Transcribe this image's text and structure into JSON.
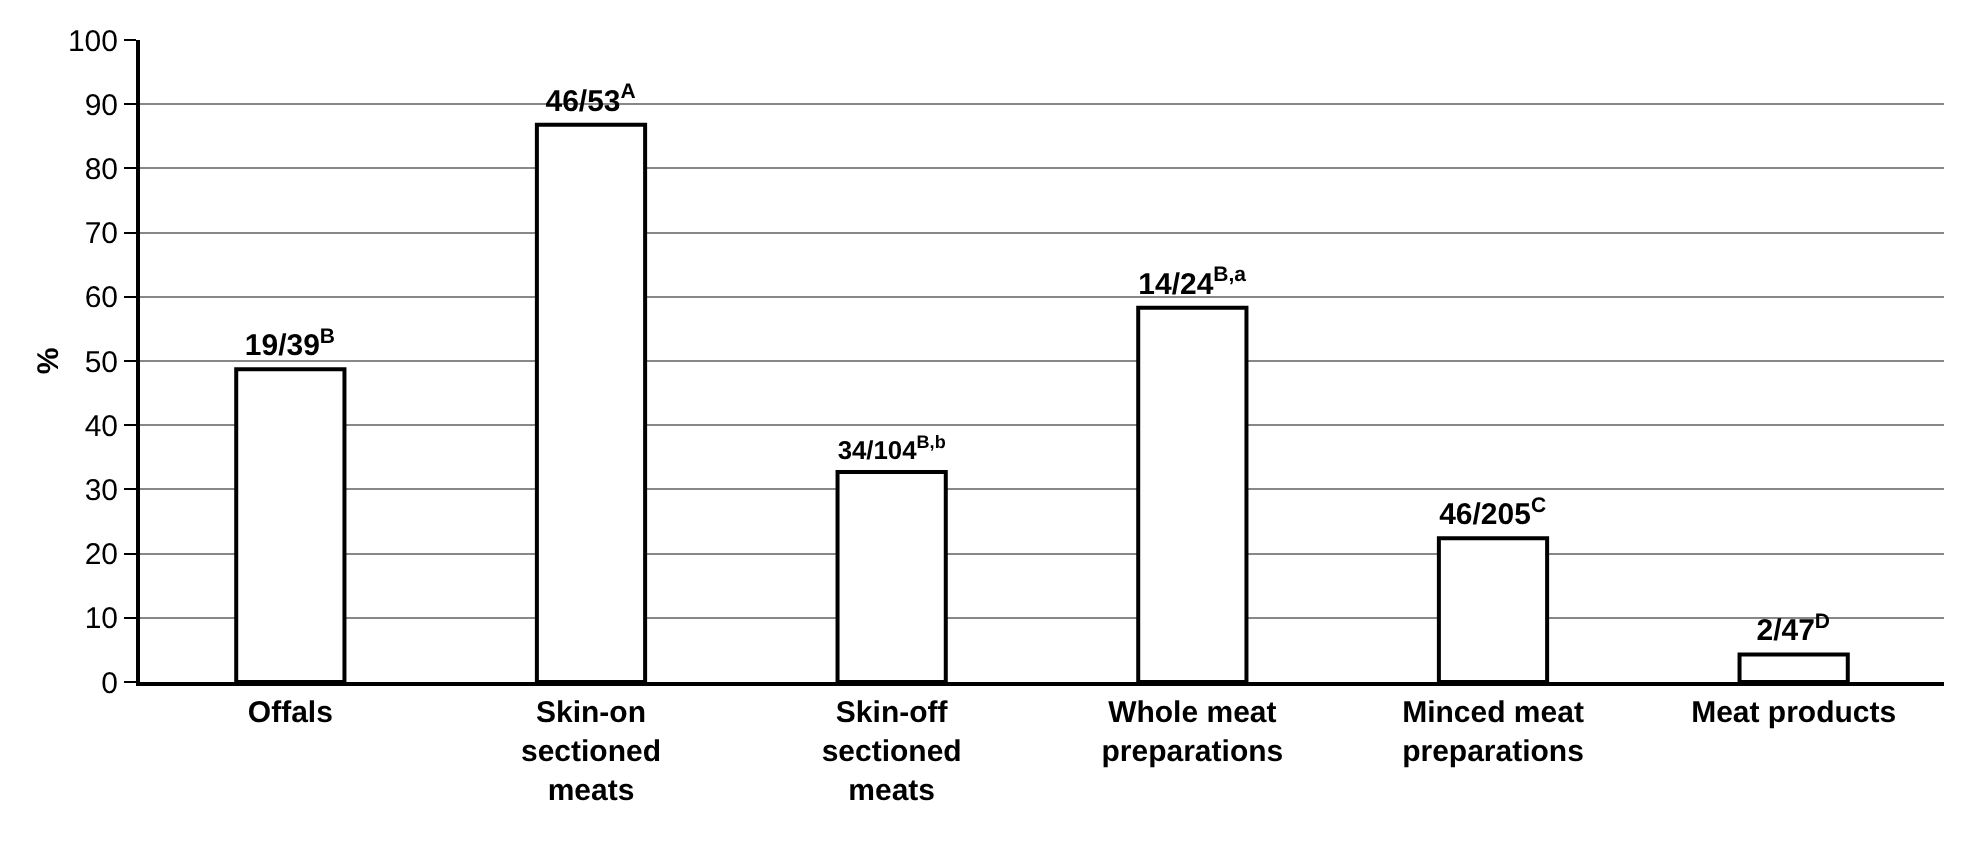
{
  "chart_data": {
    "type": "bar",
    "ylabel": "%",
    "categories": [
      "Offals",
      "Skin-on\nsectioned\nmeats",
      "Skin-off\nsectioned\nmeats",
      "Whole meat\npreparations",
      "Minced meat\npreparations",
      "Meat products"
    ],
    "values": [
      48.7,
      86.8,
      32.7,
      58.3,
      22.4,
      4.3
    ],
    "value_labels": [
      "19/39$^{B}$",
      "46/53$^{A}$",
      "34/104$^{B,b}$",
      "14/24$^{B,a}$",
      "46/205$^{C}$",
      "2/47$^{D}$"
    ],
    "color": "#ffffff",
    "ylim": [
      0,
      100
    ],
    "yticks": [
      0,
      10,
      20,
      30,
      40,
      50,
      60,
      70,
      80,
      90,
      100
    ],
    "grid": "y",
    "legend": false
  }
}
